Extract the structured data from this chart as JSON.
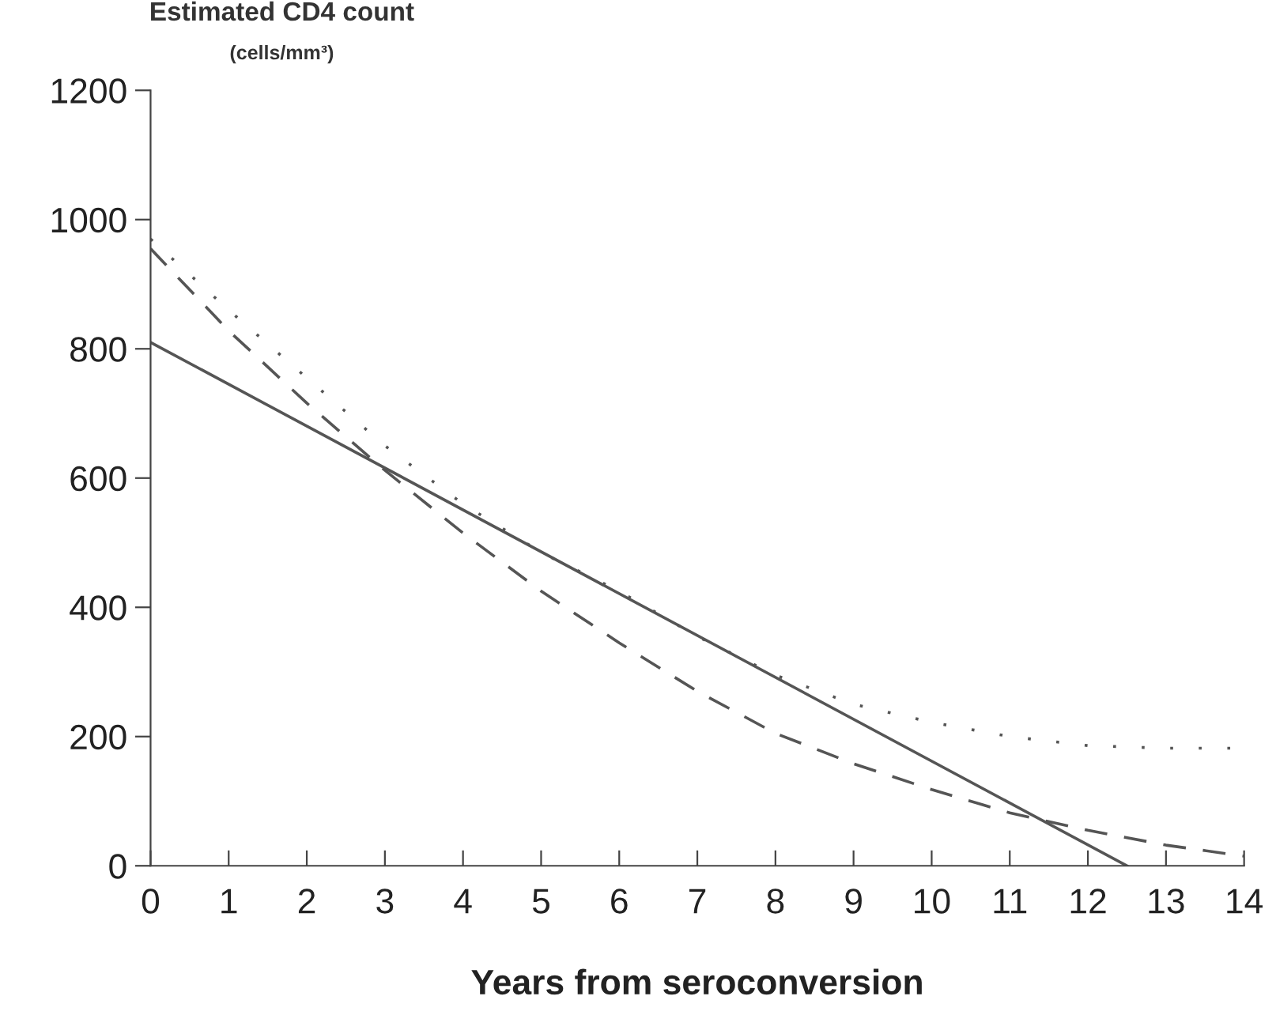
{
  "chart_data": {
    "type": "line",
    "ylabel": "Estimated CD4 count",
    "subtitle": "(cells/mm³)",
    "xlabel": "Years from seroconversion",
    "x": [
      0,
      1,
      2,
      3,
      4,
      5,
      6,
      7,
      8,
      9,
      10,
      11,
      12,
      13,
      14
    ],
    "series": [
      {
        "color": "#555555",
        "line_style": "solid",
        "x": [
          0,
          12.5
        ],
        "values": [
          810,
          0
        ]
      },
      {
        "color": "#555555",
        "line_style": "dashed",
        "values": [
          955,
          828,
          716,
          612,
          515,
          425,
          345,
          270,
          205,
          158,
          118,
          82,
          55,
          32,
          15
        ]
      },
      {
        "color": "#555555",
        "line_style": "dotted",
        "values": [
          970,
          860,
          755,
          650,
          560,
          485,
          425,
          355,
          295,
          250,
          222,
          200,
          186,
          182,
          182
        ]
      }
    ],
    "xlim": [
      0,
      14
    ],
    "ylim": [
      0,
      1200
    ],
    "xticks": [
      0,
      1,
      2,
      3,
      4,
      5,
      6,
      7,
      8,
      9,
      10,
      11,
      12,
      13,
      14
    ],
    "yticks": [
      0,
      200,
      400,
      600,
      800,
      1000,
      1200
    ],
    "grid": false,
    "legend": false
  }
}
